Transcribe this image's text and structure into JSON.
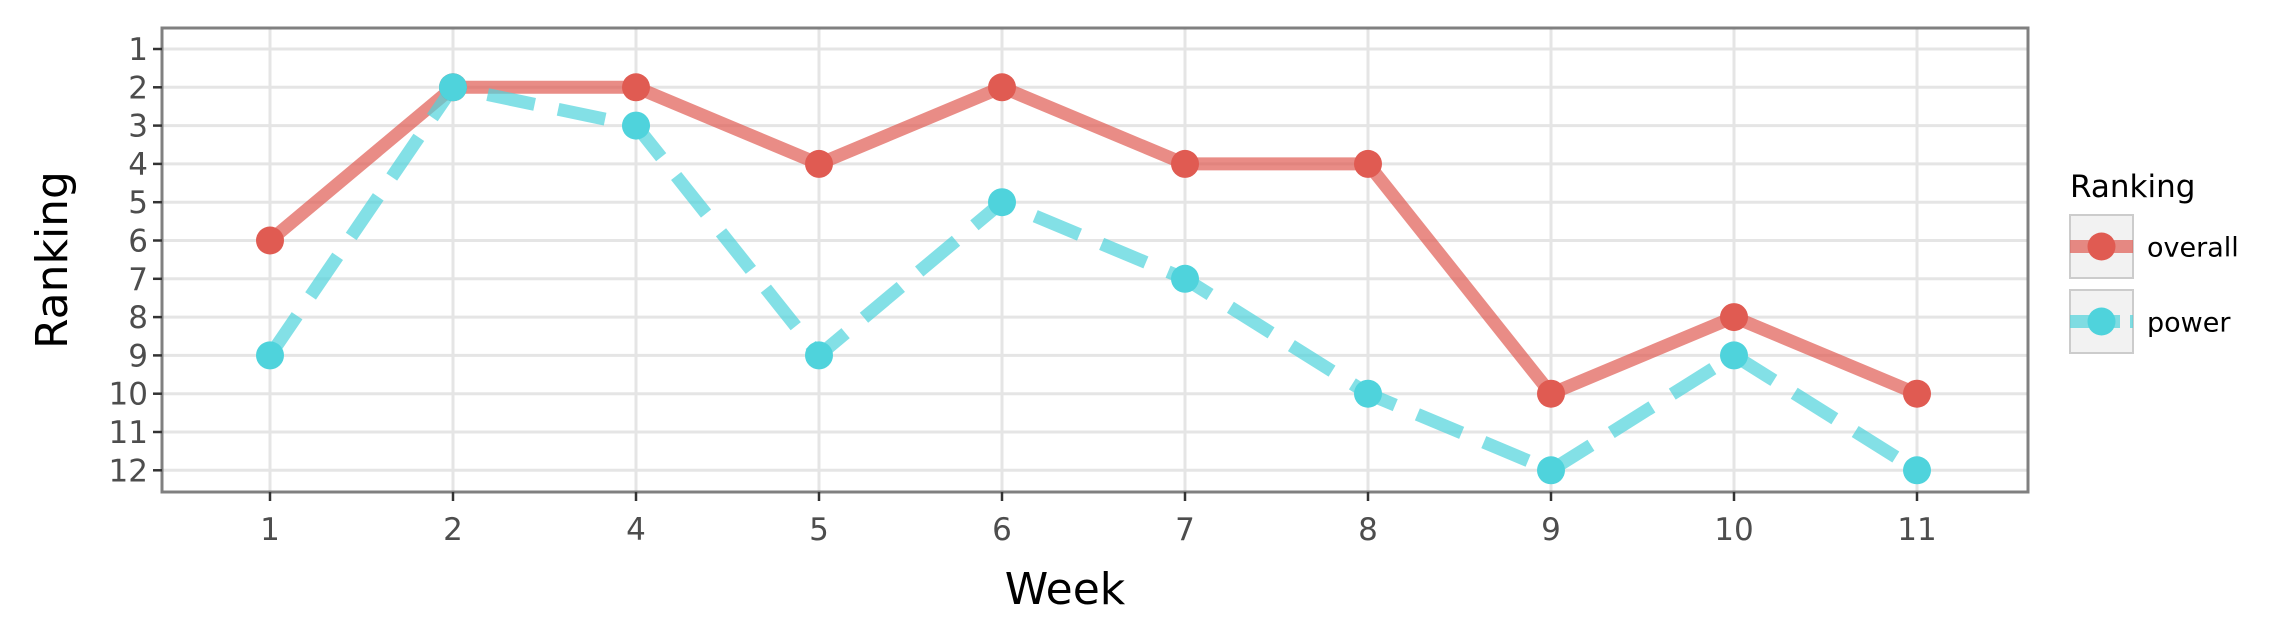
{
  "chart_data": {
    "type": "line",
    "xlabel": "Week",
    "ylabel": "Ranking",
    "categories": [
      "1",
      "2",
      "4",
      "5",
      "6",
      "7",
      "8",
      "9",
      "10",
      "11"
    ],
    "y_ticks": [
      "1",
      "2",
      "3",
      "4",
      "5",
      "6",
      "7",
      "8",
      "9",
      "10",
      "11",
      "12"
    ],
    "ylim": [
      12,
      1
    ],
    "y_reversed": true,
    "grid": true,
    "legend": {
      "title": "Ranking",
      "position": "right"
    },
    "series": [
      {
        "name": "overall",
        "color": "#e05b52",
        "line_style": "solid",
        "values": [
          6,
          2,
          2,
          4,
          2,
          4,
          4,
          10,
          8,
          10
        ]
      },
      {
        "name": "power",
        "color": "#4fd3dc",
        "line_style": "dashed",
        "values": [
          9,
          2,
          3,
          9,
          5,
          7,
          10,
          12,
          9,
          12
        ]
      }
    ]
  }
}
